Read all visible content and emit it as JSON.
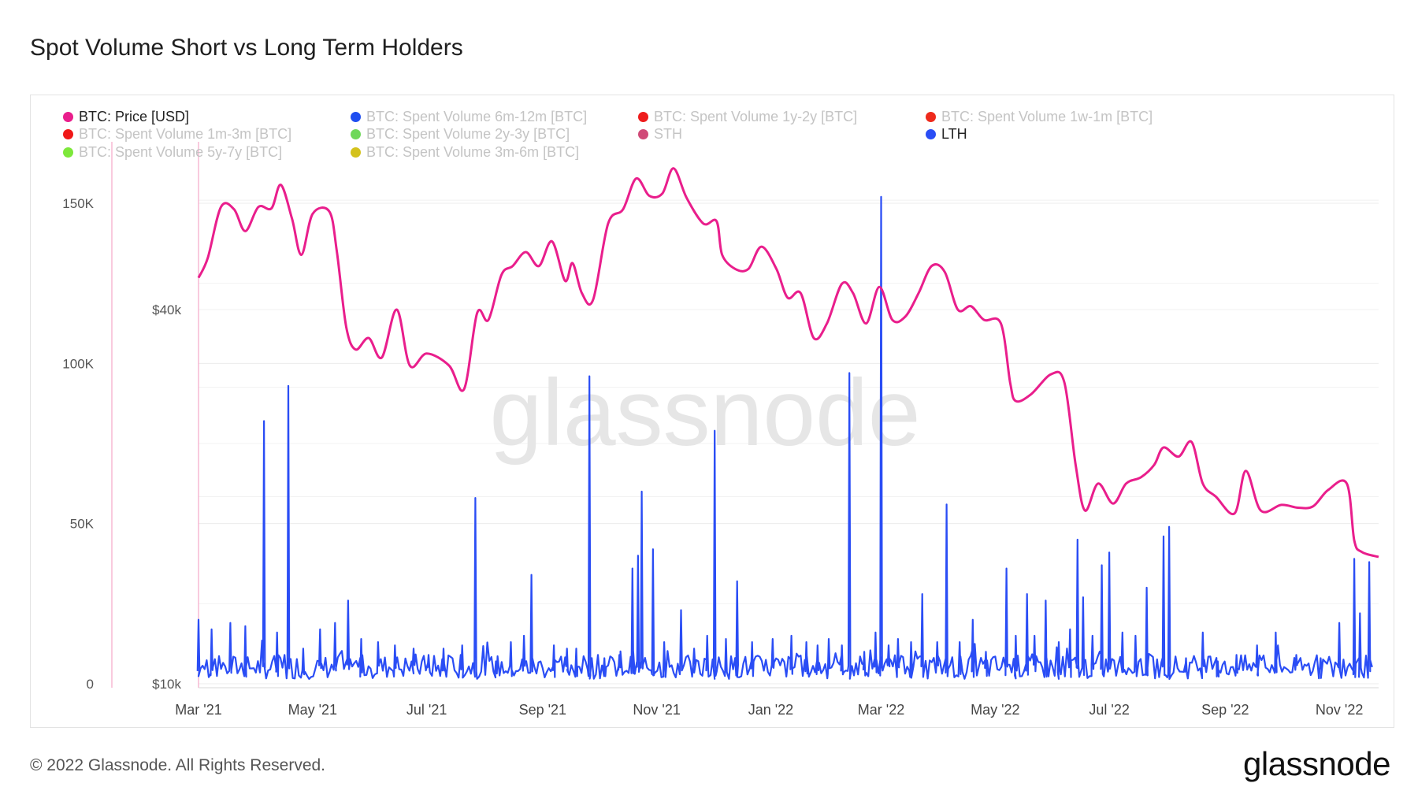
{
  "title": "Spot Volume Short vs Long Term Holders",
  "footer": "© 2022 Glassnode. All Rights Reserved.",
  "logo": "glassnode",
  "watermark": "glassnode",
  "legend": [
    {
      "label": "BTC: Price [USD]",
      "color": "#e91e8c",
      "active": true
    },
    {
      "label": "BTC: Spent Volume 6m-12m [BTC]",
      "color": "#1f4ef0",
      "active": false
    },
    {
      "label": "BTC: Spent Volume 1y-2y [BTC]",
      "color": "#ee1c1c",
      "active": false
    },
    {
      "label": "BTC: Spent Volume 1w-1m [BTC]",
      "color": "#ee2a1c",
      "active": false
    },
    {
      "label": "BTC: Spent Volume 1m-3m [BTC]",
      "color": "#f01818",
      "active": false
    },
    {
      "label": "BTC: Spent Volume 2y-3y [BTC]",
      "color": "#6fd85a",
      "active": false
    },
    {
      "label": "STH",
      "color": "#d04a78",
      "active": false
    },
    {
      "label": "LTH",
      "color": "#2a4df5",
      "active": true
    },
    {
      "label": "BTC: Spent Volume 5y-7y [BTC]",
      "color": "#7de83a",
      "active": false
    },
    {
      "label": "BTC: Spent Volume 3m-6m [BTC]",
      "color": "#d4c21c",
      "active": false
    }
  ],
  "chart_data": {
    "type": "line",
    "x_ticks": [
      "Mar '21",
      "May '21",
      "Jul '21",
      "Sep '21",
      "Nov '21",
      "Jan '22",
      "Mar '22",
      "May '22",
      "Jul '22",
      "Sep '22",
      "Nov '22"
    ],
    "x_range": [
      "2021-03-01",
      "2022-11-22"
    ],
    "left_axis": {
      "ticks": [
        "0",
        "50K",
        "100K",
        "150K"
      ],
      "values": [
        0,
        50000,
        100000,
        150000
      ],
      "range": [
        0,
        170000
      ]
    },
    "right_axis": {
      "ticks": [
        "$10k",
        "$40k"
      ],
      "values": [
        10000,
        40000
      ],
      "scale": "log",
      "range": [
        9000,
        90000
      ]
    },
    "grid": true,
    "legend_position": "top-left",
    "series": [
      {
        "name": "BTC: Price [USD]",
        "axis": "right",
        "color": "#e91e8c",
        "points": [
          [
            "2021-03-01",
            45000
          ],
          [
            "2021-03-06",
            48500
          ],
          [
            "2021-03-13",
            58500
          ],
          [
            "2021-03-20",
            58000
          ],
          [
            "2021-03-26",
            53500
          ],
          [
            "2021-04-02",
            58500
          ],
          [
            "2021-04-09",
            58200
          ],
          [
            "2021-04-14",
            63500
          ],
          [
            "2021-04-20",
            56000
          ],
          [
            "2021-04-25",
            49000
          ],
          [
            "2021-05-01",
            57000
          ],
          [
            "2021-05-10",
            57500
          ],
          [
            "2021-05-14",
            49500
          ],
          [
            "2021-05-19",
            37500
          ],
          [
            "2021-05-24",
            34500
          ],
          [
            "2021-05-31",
            36000
          ],
          [
            "2021-06-07",
            33500
          ],
          [
            "2021-06-15",
            40000
          ],
          [
            "2021-06-22",
            32500
          ],
          [
            "2021-07-01",
            34000
          ],
          [
            "2021-07-13",
            32500
          ],
          [
            "2021-07-21",
            29800
          ],
          [
            "2021-07-28",
            39500
          ],
          [
            "2021-08-03",
            38500
          ],
          [
            "2021-08-10",
            45500
          ],
          [
            "2021-08-16",
            47000
          ],
          [
            "2021-08-23",
            49500
          ],
          [
            "2021-08-30",
            47000
          ],
          [
            "2021-09-06",
            51500
          ],
          [
            "2021-09-13",
            44500
          ],
          [
            "2021-09-17",
            47500
          ],
          [
            "2021-09-22",
            42500
          ],
          [
            "2021-09-28",
            41500
          ],
          [
            "2021-10-06",
            55000
          ],
          [
            "2021-10-14",
            58000
          ],
          [
            "2021-10-21",
            65000
          ],
          [
            "2021-10-28",
            61000
          ],
          [
            "2021-11-04",
            61500
          ],
          [
            "2021-11-10",
            67500
          ],
          [
            "2021-11-17",
            60500
          ],
          [
            "2021-11-26",
            55000
          ],
          [
            "2021-12-03",
            55500
          ],
          [
            "2021-12-06",
            49000
          ],
          [
            "2021-12-13",
            46500
          ],
          [
            "2021-12-20",
            46500
          ],
          [
            "2021-12-27",
            50500
          ],
          [
            "2022-01-04",
            46500
          ],
          [
            "2022-01-10",
            41800
          ],
          [
            "2022-01-17",
            42500
          ],
          [
            "2022-01-24",
            36000
          ],
          [
            "2022-01-31",
            38000
          ],
          [
            "2022-02-08",
            44000
          ],
          [
            "2022-02-14",
            42500
          ],
          [
            "2022-02-21",
            38000
          ],
          [
            "2022-02-28",
            43500
          ],
          [
            "2022-03-07",
            38500
          ],
          [
            "2022-03-14",
            39000
          ],
          [
            "2022-03-21",
            42500
          ],
          [
            "2022-03-28",
            47000
          ],
          [
            "2022-04-04",
            46000
          ],
          [
            "2022-04-11",
            40000
          ],
          [
            "2022-04-18",
            40500
          ],
          [
            "2022-04-25",
            38500
          ],
          [
            "2022-05-04",
            38000
          ],
          [
            "2022-05-09",
            30500
          ],
          [
            "2022-05-12",
            28500
          ],
          [
            "2022-05-20",
            29200
          ],
          [
            "2022-05-31",
            31500
          ],
          [
            "2022-06-07",
            30500
          ],
          [
            "2022-06-13",
            22500
          ],
          [
            "2022-06-18",
            19000
          ],
          [
            "2022-06-25",
            21000
          ],
          [
            "2022-07-03",
            19500
          ],
          [
            "2022-07-10",
            21000
          ],
          [
            "2022-07-18",
            21500
          ],
          [
            "2022-07-25",
            22500
          ],
          [
            "2022-07-30",
            24000
          ],
          [
            "2022-08-07",
            23200
          ],
          [
            "2022-08-14",
            24500
          ],
          [
            "2022-08-20",
            21000
          ],
          [
            "2022-08-27",
            20000
          ],
          [
            "2022-09-06",
            18800
          ],
          [
            "2022-09-12",
            22000
          ],
          [
            "2022-09-20",
            19000
          ],
          [
            "2022-10-01",
            19400
          ],
          [
            "2022-10-10",
            19200
          ],
          [
            "2022-10-18",
            19300
          ],
          [
            "2022-10-26",
            20500
          ],
          [
            "2022-11-05",
            21000
          ],
          [
            "2022-11-09",
            17000
          ],
          [
            "2022-11-13",
            16300
          ],
          [
            "2022-11-22",
            16000
          ]
        ]
      },
      {
        "name": "LTH",
        "axis": "left",
        "color": "#2a4df5",
        "spikes": [
          [
            "2021-03-01",
            20000
          ],
          [
            "2021-03-08",
            17000
          ],
          [
            "2021-03-18",
            19000
          ],
          [
            "2021-03-26",
            18000
          ],
          [
            "2021-04-05",
            82000
          ],
          [
            "2021-04-12",
            16000
          ],
          [
            "2021-04-18",
            93000
          ],
          [
            "2021-04-26",
            11000
          ],
          [
            "2021-05-05",
            17000
          ],
          [
            "2021-05-13",
            19000
          ],
          [
            "2021-05-20",
            26000
          ],
          [
            "2021-05-27",
            14000
          ],
          [
            "2021-06-05",
            13000
          ],
          [
            "2021-06-14",
            12000
          ],
          [
            "2021-06-24",
            11000
          ],
          [
            "2021-07-02",
            9000
          ],
          [
            "2021-07-10",
            11000
          ],
          [
            "2021-07-20",
            12000
          ],
          [
            "2021-07-27",
            58000
          ],
          [
            "2021-08-07",
            7000
          ],
          [
            "2021-08-15",
            13000
          ],
          [
            "2021-08-22",
            15000
          ],
          [
            "2021-08-26",
            34000
          ],
          [
            "2021-09-07",
            12000
          ],
          [
            "2021-09-14",
            11000
          ],
          [
            "2021-09-19",
            11000
          ],
          [
            "2021-09-26",
            96000
          ],
          [
            "2021-10-04",
            8000
          ],
          [
            "2021-10-12",
            9000
          ],
          [
            "2021-10-19",
            36000
          ],
          [
            "2021-10-22",
            40000
          ],
          [
            "2021-10-24",
            60000
          ],
          [
            "2021-10-30",
            42000
          ],
          [
            "2021-11-05",
            13000
          ],
          [
            "2021-11-14",
            23000
          ],
          [
            "2021-11-21",
            11000
          ],
          [
            "2021-11-28",
            15000
          ],
          [
            "2021-12-02",
            79000
          ],
          [
            "2021-12-08",
            14000
          ],
          [
            "2021-12-14",
            32000
          ],
          [
            "2021-12-22",
            13000
          ],
          [
            "2022-01-02",
            14000
          ],
          [
            "2022-01-12",
            15000
          ],
          [
            "2022-01-20",
            13000
          ],
          [
            "2022-01-26",
            12000
          ],
          [
            "2022-02-01",
            14000
          ],
          [
            "2022-02-08",
            12000
          ],
          [
            "2022-02-12",
            97000
          ],
          [
            "2022-02-20",
            10000
          ],
          [
            "2022-02-26",
            16000
          ],
          [
            "2022-03-01",
            152000
          ],
          [
            "2022-03-05",
            12000
          ],
          [
            "2022-03-10",
            14000
          ],
          [
            "2022-03-17",
            13000
          ],
          [
            "2022-03-23",
            28000
          ],
          [
            "2022-03-31",
            13000
          ],
          [
            "2022-04-05",
            56000
          ],
          [
            "2022-04-12",
            13000
          ],
          [
            "2022-04-19",
            20000
          ],
          [
            "2022-04-26",
            10000
          ],
          [
            "2022-05-07",
            36000
          ],
          [
            "2022-05-12",
            15000
          ],
          [
            "2022-05-18",
            28000
          ],
          [
            "2022-05-22",
            15000
          ],
          [
            "2022-05-28",
            26000
          ],
          [
            "2022-06-04",
            13000
          ],
          [
            "2022-06-10",
            17000
          ],
          [
            "2022-06-14",
            45000
          ],
          [
            "2022-06-17",
            27000
          ],
          [
            "2022-06-22",
            15000
          ],
          [
            "2022-06-27",
            37000
          ],
          [
            "2022-07-01",
            41000
          ],
          [
            "2022-07-08",
            16000
          ],
          [
            "2022-07-15",
            15000
          ],
          [
            "2022-07-21",
            30000
          ],
          [
            "2022-07-30",
            46000
          ],
          [
            "2022-08-02",
            49000
          ],
          [
            "2022-08-11",
            8000
          ],
          [
            "2022-08-20",
            16000
          ],
          [
            "2022-08-28",
            7000
          ],
          [
            "2022-09-07",
            9000
          ],
          [
            "2022-09-18",
            12000
          ],
          [
            "2022-09-28",
            16000
          ],
          [
            "2022-10-09",
            9000
          ],
          [
            "2022-10-22",
            8000
          ],
          [
            "2022-11-01",
            19000
          ],
          [
            "2022-11-09",
            39000
          ],
          [
            "2022-11-12",
            22000
          ],
          [
            "2022-11-17",
            38000
          ],
          [
            "2022-11-20",
            10000
          ]
        ]
      }
    ]
  }
}
